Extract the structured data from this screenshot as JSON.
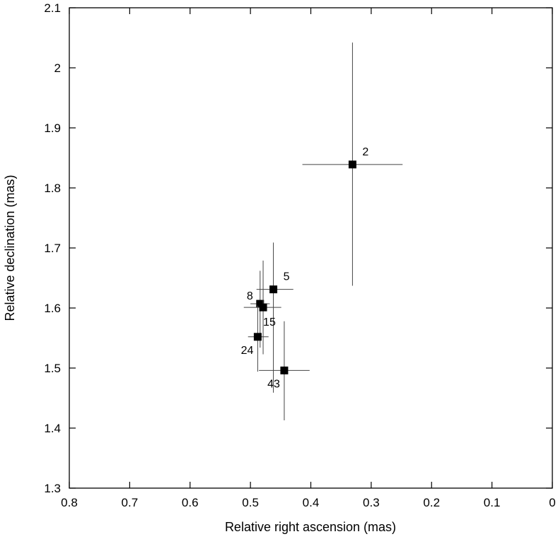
{
  "chart_data": {
    "type": "scatter",
    "title": "",
    "xlabel": "Relative right ascension (mas)",
    "ylabel": "Relative declination (mas)",
    "xlim": [
      0.8,
      0
    ],
    "ylim": [
      1.3,
      2.1
    ],
    "x_reversed": true,
    "grid": false,
    "legend": "none",
    "marker": "filled-square",
    "marker_color": "#000000",
    "errorbar_color": "#444444",
    "x_ticks": [
      "0.8",
      "0.7",
      "0.6",
      "0.5",
      "0.4",
      "0.3",
      "0.2",
      "0.1",
      "0"
    ],
    "y_ticks": [
      "1.3",
      "1.4",
      "1.5",
      "1.6",
      "1.7",
      "1.8",
      "1.9",
      "2",
      "2.1"
    ],
    "points": [
      {
        "label": "2",
        "x": 0.331,
        "y": 1.839,
        "x_err": [
          0.083,
          0.083
        ],
        "y_err": [
          0.202,
          0.203
        ],
        "label_pos": "upper-right"
      },
      {
        "label": "5",
        "x": 0.462,
        "y": 1.631,
        "x_err": [
          0.028,
          0.033
        ],
        "y_err": [
          0.172,
          0.078
        ],
        "label_pos": "upper-right"
      },
      {
        "label": "8",
        "x": 0.484,
        "y": 1.607,
        "x_err": [
          0.016,
          0.016
        ],
        "y_err": [
          0.073,
          0.055
        ],
        "label_pos": "upper-left"
      },
      {
        "label": "15",
        "x": 0.479,
        "y": 1.601,
        "x_err": [
          0.032,
          0.03
        ],
        "y_err": [
          0.078,
          0.078
        ],
        "label_pos": "lower-right"
      },
      {
        "label": "24",
        "x": 0.488,
        "y": 1.552,
        "x_err": [
          0.016,
          0.018
        ],
        "y_err": [
          0.058,
          0.052
        ],
        "label_pos": "lower-left"
      },
      {
        "label": "43",
        "x": 0.444,
        "y": 1.496,
        "x_err": [
          0.042,
          0.042
        ],
        "y_err": [
          0.083,
          0.082
        ],
        "label_pos": "lower-left"
      }
    ]
  }
}
